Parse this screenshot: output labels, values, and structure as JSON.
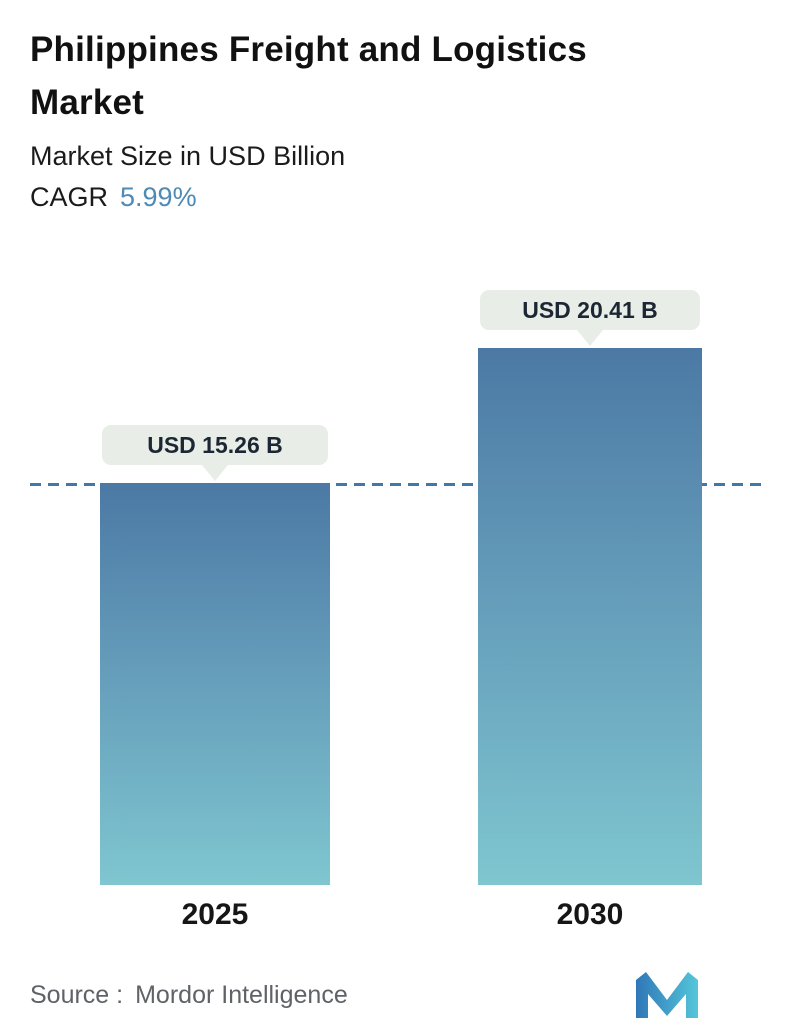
{
  "header": {
    "title": "Philippines Freight and Logistics Market",
    "subtitle": "Market Size in USD Billion",
    "cagr_label": "CAGR",
    "cagr_value": "5.99%"
  },
  "chart_data": {
    "type": "bar",
    "title": "Philippines Freight and Logistics Market",
    "subtitle": "Market Size in USD Billion",
    "cagr_percent": 5.99,
    "categories": [
      "2025",
      "2030"
    ],
    "values": [
      15.26,
      20.41
    ],
    "value_labels": [
      "USD 15.26 B",
      "USD 20.41 B"
    ],
    "unit": "USD Billion",
    "ylim": [
      0,
      20.41
    ],
    "grid": false,
    "legend": false,
    "dashed_line": {
      "value": 15.26,
      "style": "dashed",
      "color": "#4377a9"
    },
    "bar_gradient": {
      "top": "#4b79a4",
      "bottom": "#7fc6d0"
    },
    "callout_bg": "#e8eee7"
  },
  "footer": {
    "source_label": "Source :",
    "source_value": "Mordor Intelligence"
  },
  "colors": {
    "accent_blue": "#4e8ab4",
    "title_text": "#111111",
    "source_text": "#5f6368"
  }
}
